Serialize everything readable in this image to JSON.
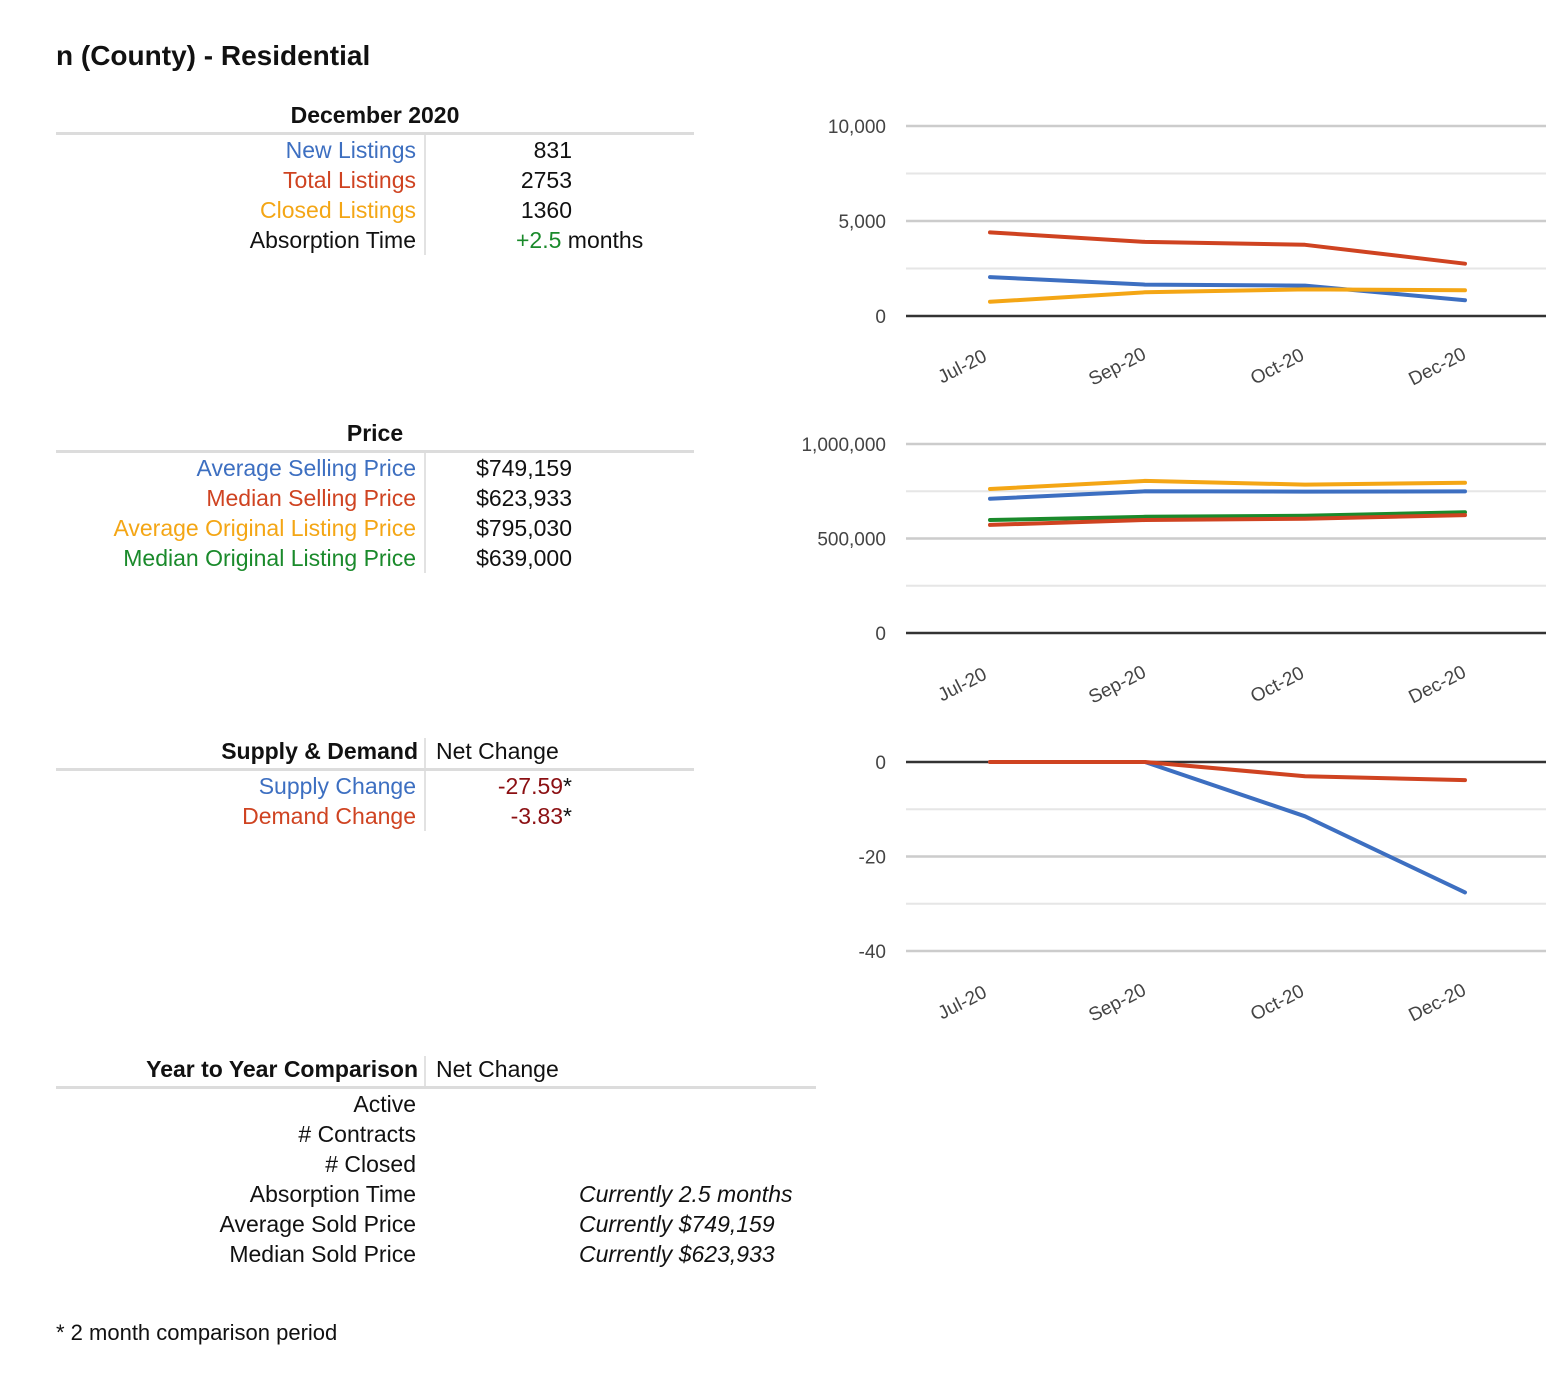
{
  "title": "n (County) - Residential",
  "listings_table": {
    "header": "December 2020",
    "rows": [
      {
        "label": "New Listings",
        "value": "831"
      },
      {
        "label": "Total Listings",
        "value": "2753"
      },
      {
        "label": "Closed Listings",
        "value": "1360"
      },
      {
        "label": "Absorption Time",
        "value": "+2.5",
        "unit": "months"
      }
    ]
  },
  "price_table": {
    "header": "Price",
    "rows": [
      {
        "label": "Average Selling Price",
        "value": "$749,159"
      },
      {
        "label": "Median Selling Price",
        "value": "$623,933"
      },
      {
        "label": "Average Original Listing Price",
        "value": "$795,030"
      },
      {
        "label": "Median Original Listing Price",
        "value": "$639,000"
      }
    ]
  },
  "supply_table": {
    "header": "Supply & Demand",
    "col_header": "Net Change",
    "rows": [
      {
        "label": "Supply Change",
        "value": "-27.59",
        "mark": "*"
      },
      {
        "label": "Demand Change",
        "value": "-3.83",
        "mark": "*"
      }
    ]
  },
  "yoy_table": {
    "header": "Year to Year Comparison",
    "col_header": "Net Change",
    "rows": [
      {
        "label": "Active",
        "current": ""
      },
      {
        "label": "# Contracts",
        "current": ""
      },
      {
        "label": "# Closed",
        "current": ""
      },
      {
        "label": "Absorption Time",
        "current": "Currently 2.5 months"
      },
      {
        "label": "Average Sold Price",
        "current": "Currently $749,159"
      },
      {
        "label": "Median Sold Price",
        "current": "Currently $623,933"
      }
    ]
  },
  "footnote": "* 2 month comparison period",
  "colors": {
    "blue": "#3d6fc1",
    "red": "#cf4321",
    "orange": "#f4a615",
    "green": "#1a8a2b"
  },
  "chart_data": [
    {
      "type": "line",
      "categories": [
        "Jul-20",
        "Sep-20",
        "Oct-20",
        "Dec-20"
      ],
      "ylim": [
        0,
        10000
      ],
      "yticks": [
        0,
        5000,
        10000
      ],
      "ytick_labels": [
        "0",
        "5,000",
        "10,000"
      ],
      "grid": true,
      "series": [
        {
          "color": "red",
          "values": [
            4400,
            3900,
            3750,
            2753
          ]
        },
        {
          "color": "blue",
          "values": [
            2050,
            1650,
            1600,
            831
          ]
        },
        {
          "color": "orange",
          "values": [
            750,
            1250,
            1400,
            1360
          ]
        }
      ]
    },
    {
      "type": "line",
      "categories": [
        "Jul-20",
        "Sep-20",
        "Oct-20",
        "Dec-20"
      ],
      "ylim": [
        0,
        1000000
      ],
      "yticks": [
        0,
        500000,
        1000000
      ],
      "ytick_labels": [
        "0",
        "500,000",
        "1,000,000"
      ],
      "grid": true,
      "series": [
        {
          "color": "orange",
          "values": [
            762000,
            805000,
            785000,
            795030
          ]
        },
        {
          "color": "blue",
          "values": [
            710000,
            750000,
            748000,
            749159
          ]
        },
        {
          "color": "green",
          "values": [
            598000,
            615000,
            620000,
            639000
          ]
        },
        {
          "color": "red",
          "values": [
            572000,
            598000,
            605000,
            623933
          ]
        }
      ]
    },
    {
      "type": "line",
      "categories": [
        "Jul-20",
        "Sep-20",
        "Oct-20",
        "Dec-20"
      ],
      "ylim": [
        -40,
        0
      ],
      "yticks": [
        -40,
        -20,
        0
      ],
      "ytick_labels": [
        "-40",
        "-20",
        "0"
      ],
      "grid": true,
      "series": [
        {
          "color": "blue",
          "values": [
            0,
            0,
            -11.5,
            -27.59
          ]
        },
        {
          "color": "red",
          "values": [
            0,
            0,
            -3,
            -3.83
          ]
        }
      ]
    }
  ]
}
